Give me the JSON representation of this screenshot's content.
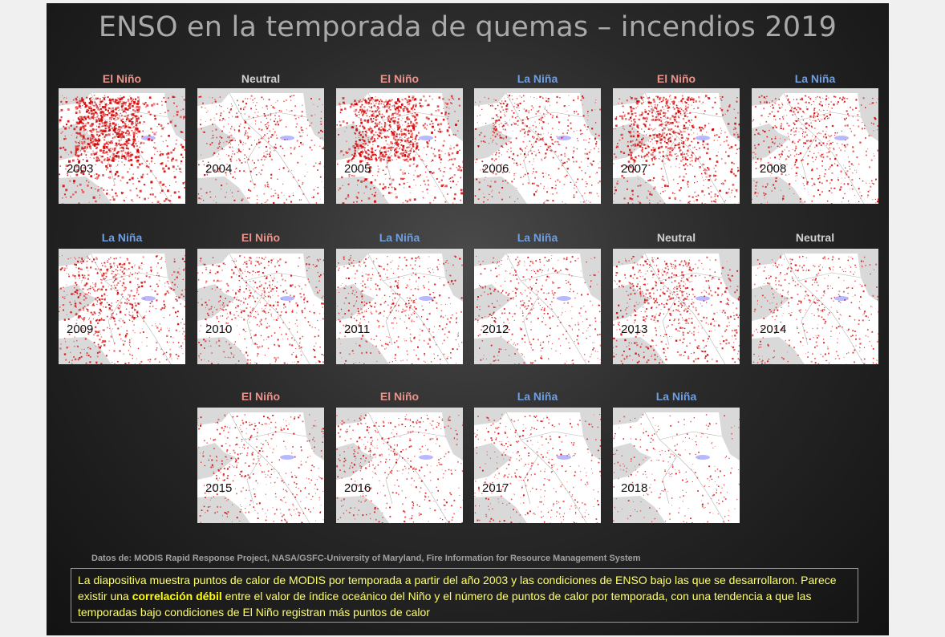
{
  "slide": {
    "title": "ENSO en la temporada de quemas – incendios 2019",
    "credits": "Datos de:  MODIS Rapid Response Project, NASA/GSFC-University of Maryland, Fire Information for Resource Management System",
    "caption": {
      "part1": "La diapositiva muestra puntos de calor de MODIS por temporada a partir del año 2003 y las condiciones de ENSO bajo las que se desarrollaron.  Parece existir una ",
      "bold": "correlación débil",
      "part2": " entre el valor de índice oceánico del Niño y el número de puntos de calor por temporada, con una tendencia a que las temporadas bajo condiciones de El Niño registran más puntos de calor"
    }
  },
  "colors": {
    "el_nino": "#e8948c",
    "la_nina": "#6f9fe0",
    "neutral": "#d0d0d0",
    "fire": "#d40000"
  },
  "panels": [
    {
      "year": "2003",
      "condition": "El Niño",
      "type": "el_nino",
      "intensity": 0.95
    },
    {
      "year": "2004",
      "condition": "Neutral",
      "type": "neutral",
      "intensity": 0.35
    },
    {
      "year": "2005",
      "condition": "El Niño",
      "type": "el_nino",
      "intensity": 0.85
    },
    {
      "year": "2006",
      "condition": "La Niña",
      "type": "la_nina",
      "intensity": 0.4
    },
    {
      "year": "2007",
      "condition": "El Niño",
      "type": "el_nino",
      "intensity": 0.7
    },
    {
      "year": "2008",
      "condition": "La Niña",
      "type": "la_nina",
      "intensity": 0.45
    },
    {
      "year": "2009",
      "condition": "La Niña",
      "type": "la_nina",
      "intensity": 0.55
    },
    {
      "year": "2010",
      "condition": "El Niño",
      "type": "el_nino",
      "intensity": 0.4
    },
    {
      "year": "2011",
      "condition": "La Niña",
      "type": "la_nina",
      "intensity": 0.35
    },
    {
      "year": "2012",
      "condition": "La Niña",
      "type": "la_nina",
      "intensity": 0.3
    },
    {
      "year": "2013",
      "condition": "Neutral",
      "type": "neutral",
      "intensity": 0.5
    },
    {
      "year": "2014",
      "condition": "Neutral",
      "type": "neutral",
      "intensity": 0.3
    },
    {
      "year": "2015",
      "condition": "El Niño",
      "type": "el_nino",
      "intensity": 0.3
    },
    {
      "year": "2016",
      "condition": "El Niño",
      "type": "el_nino",
      "intensity": 0.3
    },
    {
      "year": "2017",
      "condition": "La Niña",
      "type": "la_nina",
      "intensity": 0.25
    },
    {
      "year": "2018",
      "condition": "La Niña",
      "type": "la_nina",
      "intensity": 0.15
    }
  ]
}
